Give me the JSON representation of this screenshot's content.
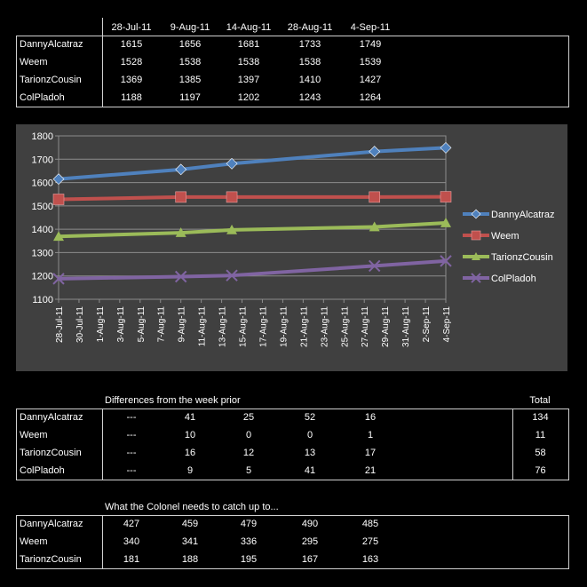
{
  "scores_table": {
    "headers": [
      "28-Jul-11",
      "9-Aug-11",
      "14-Aug-11",
      "28-Aug-11",
      "4-Sep-11"
    ],
    "rows": [
      {
        "name": "DannyAlcatraz",
        "values": [
          "1615",
          "1656",
          "1681",
          "1733",
          "1749"
        ]
      },
      {
        "name": "Weem",
        "values": [
          "1528",
          "1538",
          "1538",
          "1538",
          "1539"
        ]
      },
      {
        "name": "TarionzCousin",
        "values": [
          "1369",
          "1385",
          "1397",
          "1410",
          "1427"
        ]
      },
      {
        "name": "ColPladoh",
        "values": [
          "1188",
          "1197",
          "1202",
          "1243",
          "1264"
        ]
      }
    ]
  },
  "chart_data": {
    "type": "line",
    "x": [
      "2011-07-28",
      "2011-08-09",
      "2011-08-14",
      "2011-08-28",
      "2011-09-04"
    ],
    "x_tick_labels": [
      "28-Jul-11",
      "30-Jul-11",
      "1-Aug-11",
      "3-Aug-11",
      "5-Aug-11",
      "7-Aug-11",
      "9-Aug-11",
      "11-Aug-11",
      "13-Aug-11",
      "15-Aug-11",
      "17-Aug-11",
      "19-Aug-11",
      "21-Aug-11",
      "23-Aug-11",
      "25-Aug-11",
      "27-Aug-11",
      "29-Aug-11",
      "31-Aug-11",
      "2-Sep-11",
      "4-Sep-11"
    ],
    "ylim": [
      1100,
      1800
    ],
    "y_ticks": [
      "1100",
      "1200",
      "1300",
      "1400",
      "1500",
      "1600",
      "1700",
      "1800"
    ],
    "grid": true,
    "legend_position": "right",
    "series": [
      {
        "name": "DannyAlcatraz",
        "values": [
          1615,
          1656,
          1681,
          1733,
          1749
        ],
        "color": "#4f81bd",
        "marker": "diamond"
      },
      {
        "name": "Weem",
        "values": [
          1528,
          1538,
          1538,
          1538,
          1539
        ],
        "color": "#c0504d",
        "marker": "square"
      },
      {
        "name": "TarionzCousin",
        "values": [
          1369,
          1385,
          1397,
          1410,
          1427
        ],
        "color": "#9bbb59",
        "marker": "triangle"
      },
      {
        "name": "ColPladoh",
        "values": [
          1188,
          1197,
          1202,
          1243,
          1264
        ],
        "color": "#8064a2",
        "marker": "x"
      }
    ]
  },
  "differences_table": {
    "title": "Differences from the week prior",
    "total_label": "Total",
    "rows": [
      {
        "name": "DannyAlcatraz",
        "values": [
          "---",
          "41",
          "25",
          "52",
          "16"
        ],
        "total": "134"
      },
      {
        "name": "Weem",
        "values": [
          "---",
          "10",
          "0",
          "0",
          "1"
        ],
        "total": "11"
      },
      {
        "name": "TarionzCousin",
        "values": [
          "---",
          "16",
          "12",
          "13",
          "17"
        ],
        "total": "58"
      },
      {
        "name": "ColPladoh",
        "values": [
          "---",
          "9",
          "5",
          "41",
          "21"
        ],
        "total": "76"
      }
    ]
  },
  "catchup_table": {
    "title": "What the Colonel needs to catch up to...",
    "rows": [
      {
        "name": "DannyAlcatraz",
        "values": [
          "427",
          "459",
          "479",
          "490",
          "485"
        ]
      },
      {
        "name": "Weem",
        "values": [
          "340",
          "341",
          "336",
          "295",
          "275"
        ]
      },
      {
        "name": "TarionzCousin",
        "values": [
          "181",
          "188",
          "195",
          "167",
          "163"
        ]
      }
    ]
  }
}
